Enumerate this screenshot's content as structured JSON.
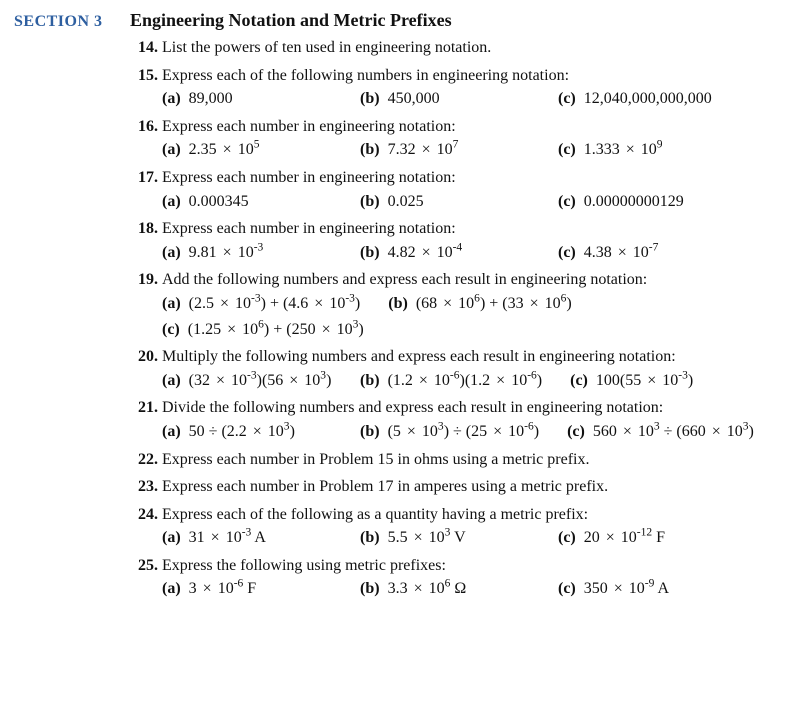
{
  "colors": {
    "section_label": "#2e5fa0",
    "text": "#111111",
    "background": "#ffffff"
  },
  "typography": {
    "font_family": "Times New Roman, Times, serif",
    "title_fontsize_pt": 14,
    "body_fontsize_pt": 12
  },
  "section": {
    "label": "SECTION 3",
    "title": "Engineering Notation and Metric Prefixes"
  },
  "problems": [
    {
      "id": "p14",
      "num": "14.",
      "text": "List the powers of ten used in engineering notation.",
      "subs": []
    },
    {
      "id": "p15",
      "num": "15.",
      "text": "Express each of the following numbers in engineering notation:",
      "subs": [
        {
          "lbl": "(a)",
          "val": "89,000"
        },
        {
          "lbl": "(b)",
          "val": "450,000"
        },
        {
          "lbl": "(c)",
          "val": "12,040,000,000,000"
        }
      ]
    },
    {
      "id": "p16",
      "num": "16.",
      "text": "Express each number in engineering notation:",
      "subs": [
        {
          "lbl": "(a)",
          "val": "2.35 × 10^5"
        },
        {
          "lbl": "(b)",
          "val": "7.32 × 10^7"
        },
        {
          "lbl": "(c)",
          "val": "1.333 × 10^9"
        }
      ]
    },
    {
      "id": "p17",
      "num": "17.",
      "text": "Express each number in engineering notation:",
      "subs": [
        {
          "lbl": "(a)",
          "val": "0.000345"
        },
        {
          "lbl": "(b)",
          "val": "0.025"
        },
        {
          "lbl": "(c)",
          "val": "0.00000000129"
        }
      ]
    },
    {
      "id": "p18",
      "num": "18.",
      "text": "Express each number in engineering notation:",
      "subs": [
        {
          "lbl": "(a)",
          "val": "9.81 × 10^-3"
        },
        {
          "lbl": "(b)",
          "val": "4.82 × 10^-4"
        },
        {
          "lbl": "(c)",
          "val": "4.38 × 10^-7"
        }
      ]
    },
    {
      "id": "p19",
      "num": "19.",
      "text": "Add the following numbers and express each result in engineering notation:",
      "subs": [
        {
          "lbl": "(a)",
          "val": "(2.5 × 10^-3) + (4.6 × 10^-3)"
        },
        {
          "lbl": "(b)",
          "val": "(68 × 10^6) + (33 × 10^6)"
        },
        {
          "lbl": "(c)",
          "val": "(1.25 × 10^6) + (250 × 10^3)"
        }
      ]
    },
    {
      "id": "p20",
      "num": "20.",
      "text": "Multiply the following numbers and express each result in engineering notation:",
      "subs": [
        {
          "lbl": "(a)",
          "val": "(32 × 10^-3)(56 × 10^3)"
        },
        {
          "lbl": "(b)",
          "val": "(1.2 × 10^-6)(1.2 × 10^-6)"
        },
        {
          "lbl": "(c)",
          "val": "100(55 × 10^-3)"
        }
      ]
    },
    {
      "id": "p21",
      "num": "21.",
      "text": "Divide the following numbers and express each result in engineering notation:",
      "subs": [
        {
          "lbl": "(a)",
          "val": "50 ÷ (2.2 × 10^3)"
        },
        {
          "lbl": "(b)",
          "val": "(5 × 10^3) ÷ (25 × 10^-6)"
        },
        {
          "lbl": "(c)",
          "val": "560 × 10^3 ÷ (660 × 10^3)"
        }
      ]
    },
    {
      "id": "p22",
      "num": "22.",
      "text": "Express each number in Problem 15 in ohms using a metric prefix.",
      "subs": []
    },
    {
      "id": "p23",
      "num": "23.",
      "text": "Express each number in Problem 17 in amperes using a metric prefix.",
      "subs": []
    },
    {
      "id": "p24",
      "num": "24.",
      "text": "Express each of the following as a quantity having a metric prefix:",
      "subs": [
        {
          "lbl": "(a)",
          "val": "31 × 10^-3 A"
        },
        {
          "lbl": "(b)",
          "val": "5.5 × 10^3 V"
        },
        {
          "lbl": "(c)",
          "val": "20 × 10^-12 F"
        }
      ]
    },
    {
      "id": "p25",
      "num": "25.",
      "text": "Express the following using metric prefixes:",
      "subs": [
        {
          "lbl": "(a)",
          "val": "3 × 10^-6 F"
        },
        {
          "lbl": "(b)",
          "val": "3.3 × 10^6 Ω"
        },
        {
          "lbl": "(c)",
          "val": "350 × 10^-9 A"
        }
      ]
    }
  ]
}
